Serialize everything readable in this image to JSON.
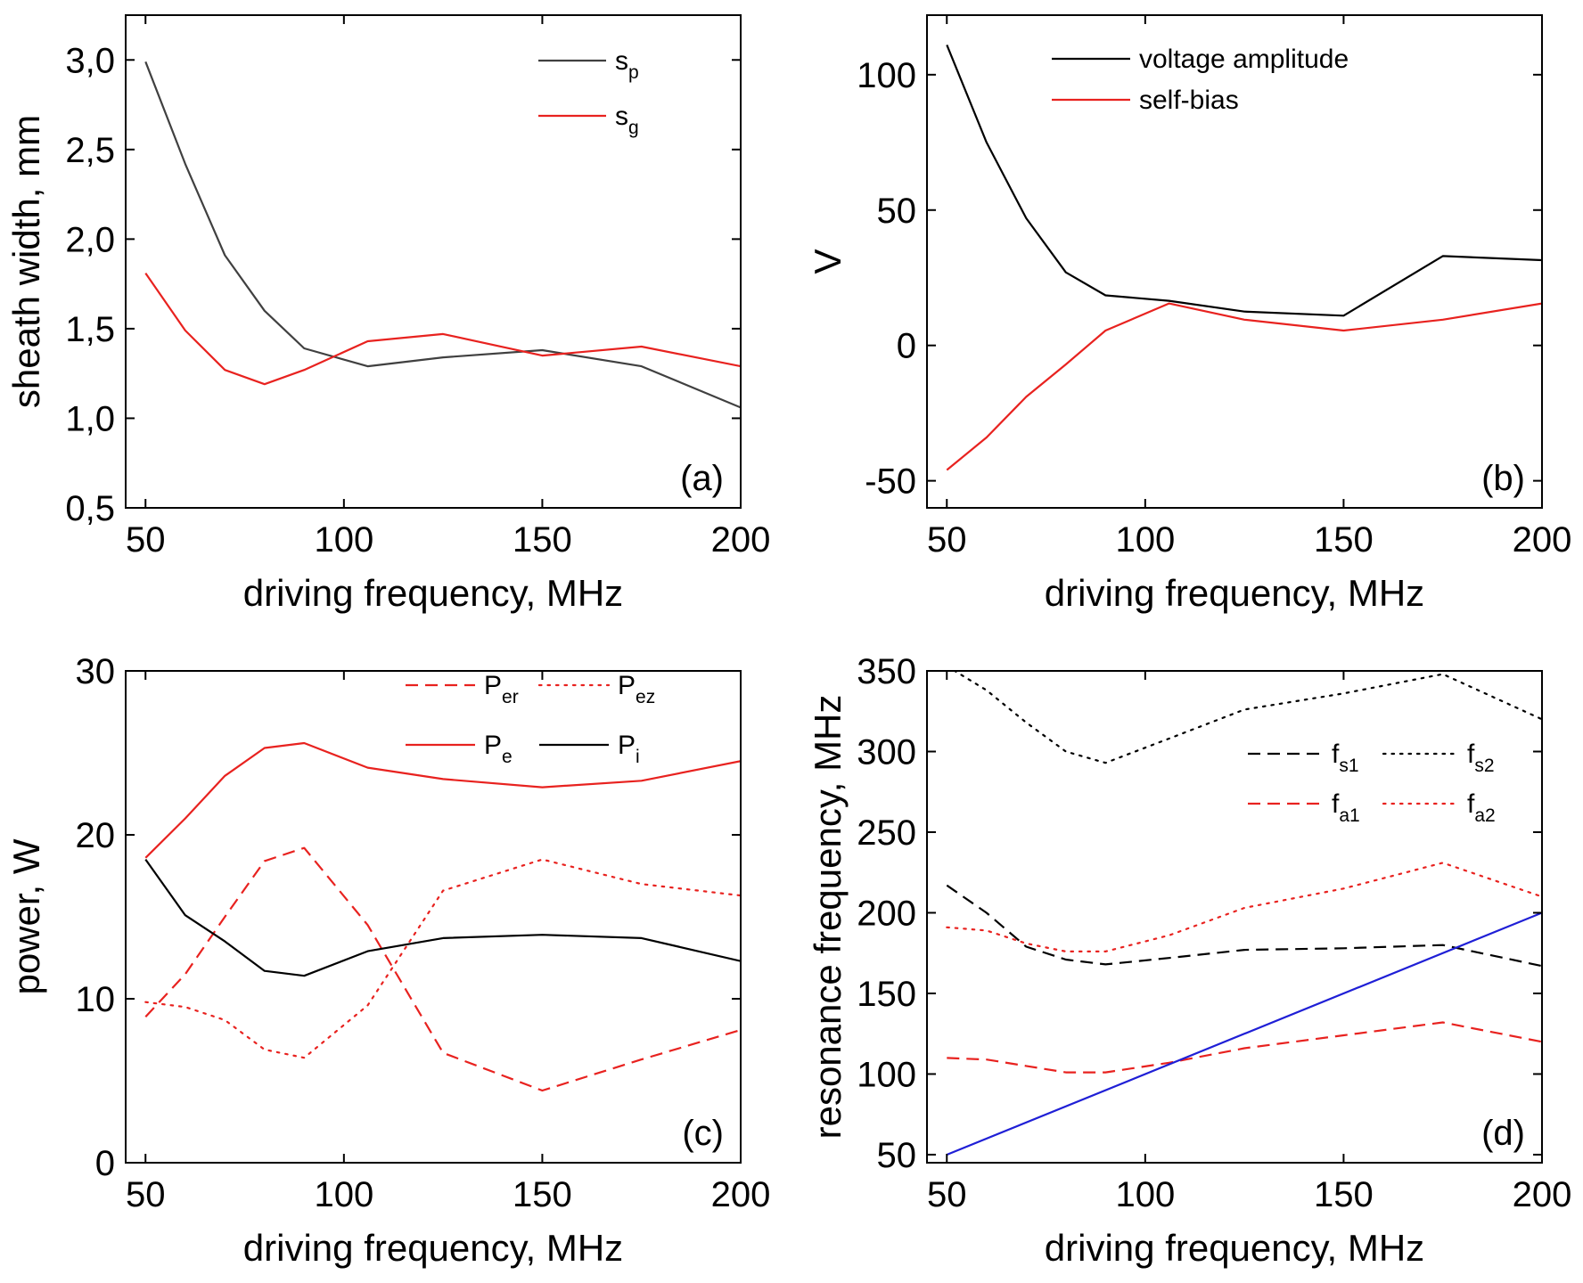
{
  "chart_data": [
    {
      "type": "line",
      "panel_tag": "(a)",
      "xlabel": "driving frequency, MHz",
      "ylabel": "sheath width, mm",
      "xlim": [
        45,
        200
      ],
      "ylim": [
        0.5,
        3.25
      ],
      "xticks": [
        50,
        100,
        150,
        200
      ],
      "yticks": [
        0.5,
        1.0,
        1.5,
        2.0,
        2.5,
        3.0
      ],
      "ytick_labels": [
        "0,5",
        "1,0",
        "1,5",
        "2,0",
        "2,5",
        "3,0"
      ],
      "legend_position": "top-right",
      "series": [
        {
          "name": "s",
          "sub": "p",
          "color": "#404040",
          "dash": "solid",
          "x": [
            50,
            60,
            70,
            80,
            90,
            106,
            125,
            150,
            175,
            200
          ],
          "y": [
            2.99,
            2.42,
            1.91,
            1.6,
            1.39,
            1.29,
            1.34,
            1.38,
            1.29,
            1.06
          ]
        },
        {
          "name": "s",
          "sub": "g",
          "color": "#e8221f",
          "dash": "solid",
          "x": [
            50,
            60,
            70,
            80,
            90,
            106,
            125,
            150,
            175,
            200
          ],
          "y": [
            1.81,
            1.49,
            1.27,
            1.19,
            1.27,
            1.43,
            1.47,
            1.35,
            1.4,
            1.29
          ]
        }
      ]
    },
    {
      "type": "line",
      "panel_tag": "(b)",
      "xlabel": "driving frequency, MHz",
      "ylabel": "V",
      "xlim": [
        45,
        200
      ],
      "ylim": [
        -60,
        122
      ],
      "xticks": [
        50,
        100,
        150,
        200
      ],
      "yticks": [
        -50,
        0,
        50,
        100
      ],
      "ytick_labels": [
        "-50",
        "0",
        "50",
        "100"
      ],
      "legend_position": "top-center",
      "series": [
        {
          "name": "voltage amplitude",
          "sub": "",
          "color": "#000000",
          "dash": "solid",
          "x": [
            50,
            60,
            70,
            80,
            90,
            106,
            125,
            150,
            175,
            200
          ],
          "y": [
            111,
            75,
            47,
            27,
            18.5,
            16.5,
            12.5,
            11,
            33,
            31.5
          ]
        },
        {
          "name": "self-bias",
          "sub": "",
          "color": "#e8221f",
          "dash": "solid",
          "x": [
            50,
            60,
            70,
            80,
            90,
            106,
            125,
            150,
            175,
            200
          ],
          "y": [
            -46,
            -34,
            -19,
            -7,
            5.5,
            15.5,
            9.5,
            5.5,
            9.5,
            15.5
          ]
        }
      ]
    },
    {
      "type": "line",
      "panel_tag": "(c)",
      "xlabel": "driving frequency, MHz",
      "ylabel": "power, W",
      "xlim": [
        45,
        200
      ],
      "ylim": [
        0,
        30
      ],
      "xticks": [
        50,
        100,
        150,
        200
      ],
      "yticks": [
        0,
        10,
        20,
        30
      ],
      "ytick_labels": [
        "0",
        "10",
        "20",
        "30"
      ],
      "legend_position": "top-right",
      "series": [
        {
          "name": "P",
          "sub": "er",
          "color": "#e8221f",
          "dash": "dashed",
          "x": [
            50,
            60,
            70,
            80,
            90,
            106,
            125,
            150,
            175,
            200
          ],
          "y": [
            8.9,
            11.5,
            15.0,
            18.4,
            19.2,
            14.5,
            6.7,
            4.4,
            6.3,
            8.1
          ]
        },
        {
          "name": "P",
          "sub": "ez",
          "color": "#e8221f",
          "dash": "dotted",
          "x": [
            50,
            60,
            70,
            80,
            90,
            106,
            125,
            150,
            175,
            200
          ],
          "y": [
            9.8,
            9.5,
            8.7,
            6.9,
            6.4,
            9.6,
            16.6,
            18.5,
            17.0,
            16.3
          ]
        },
        {
          "name": "P",
          "sub": "e",
          "color": "#e8221f",
          "dash": "solid",
          "x": [
            50,
            60,
            70,
            80,
            90,
            106,
            125,
            150,
            175,
            200
          ],
          "y": [
            18.6,
            21.0,
            23.6,
            25.3,
            25.6,
            24.1,
            23.4,
            22.9,
            23.3,
            24.5
          ]
        },
        {
          "name": "P",
          "sub": "i",
          "color": "#000000",
          "dash": "solid",
          "x": [
            50,
            60,
            70,
            80,
            90,
            106,
            125,
            150,
            175,
            200
          ],
          "y": [
            18.5,
            15.1,
            13.5,
            11.7,
            11.4,
            12.9,
            13.7,
            13.9,
            13.7,
            12.3
          ]
        }
      ]
    },
    {
      "type": "line",
      "panel_tag": "(d)",
      "xlabel": "driving frequency, MHz",
      "ylabel": "resonance frequency, MHz",
      "xlim": [
        45,
        200
      ],
      "ylim": [
        45,
        350
      ],
      "xticks": [
        50,
        100,
        150,
        200
      ],
      "yticks": [
        50,
        100,
        150,
        200,
        250,
        300,
        350
      ],
      "ytick_labels": [
        "50",
        "100",
        "150",
        "200",
        "250",
        "300",
        "350"
      ],
      "legend_position": "upper-right",
      "series": [
        {
          "name": "f",
          "sub": "s1",
          "color": "#000000",
          "dash": "dashed",
          "x": [
            50,
            60,
            70,
            80,
            90,
            106,
            125,
            150,
            175,
            200
          ],
          "y": [
            217,
            200,
            179,
            171,
            168,
            172,
            177,
            178,
            180,
            167
          ]
        },
        {
          "name": "f",
          "sub": "s2",
          "color": "#000000",
          "dash": "dotted",
          "x": [
            50,
            60,
            70,
            80,
            90,
            106,
            125,
            150,
            175,
            200
          ],
          "y": [
            353,
            338,
            318,
            300,
            293,
            308,
            326,
            336,
            348,
            320
          ]
        },
        {
          "name": "f",
          "sub": "a1",
          "color": "#e8221f",
          "dash": "dashed",
          "x": [
            50,
            60,
            70,
            80,
            90,
            106,
            125,
            150,
            175,
            200
          ],
          "y": [
            110,
            109,
            105,
            101,
            101,
            107,
            116,
            124,
            132,
            120
          ]
        },
        {
          "name": "f",
          "sub": "a2",
          "color": "#e8221f",
          "dash": "dotted",
          "x": [
            50,
            60,
            70,
            80,
            90,
            106,
            125,
            150,
            175,
            200
          ],
          "y": [
            191,
            189,
            181,
            176,
            176,
            186,
            203,
            215,
            231,
            210
          ]
        },
        {
          "name": "",
          "sub": "",
          "color": "#1f1fd6",
          "dash": "solid",
          "legend": false,
          "x": [
            50,
            200
          ],
          "y": [
            50,
            200
          ]
        }
      ]
    }
  ]
}
